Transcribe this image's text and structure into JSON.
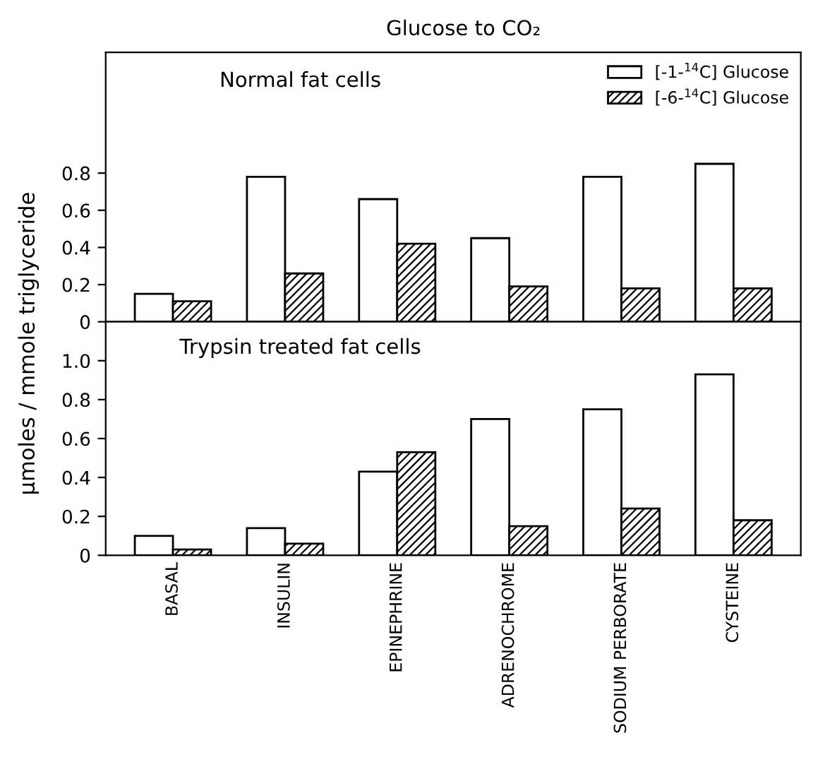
{
  "chart_data": [
    {
      "type": "bar",
      "title": "Glucose to CO₂",
      "subtitle": "Normal fat cells",
      "ylabel": "μmoles / mmole triglyceride",
      "categories": [
        null,
        null,
        null,
        null,
        null,
        null
      ],
      "series": [
        {
          "name": "[-1-$^{14}$C] Glucose",
          "color": "#ffffff",
          "values": [
            0.15,
            0.78,
            0.66,
            0.45,
            0.78,
            0.85
          ]
        },
        {
          "name": "[-6-$^{14}$C] Glucose",
          "color": "#000000",
          "values": [
            0.11,
            0.26,
            0.42,
            0.19,
            0.18,
            0.18
          ]
        }
      ],
      "ylim": [
        0,
        1.45
      ],
      "yticks": [
        0,
        0.2,
        0.4,
        0.6,
        0.8
      ],
      "tick_labels": "y",
      "legend": "top right",
      "grid": false
    },
    {
      "type": "bar",
      "subtitle": "Trypsin treated fat cells",
      "categories": [
        "BASAL",
        "INSULIN",
        "EPINEPHRINE",
        "ADRENOCHROME",
        "SODIUM PERBORATE",
        "CYSTEINE"
      ],
      "series": [
        {
          "color": "#ffffff",
          "values": [
            0.1,
            0.14,
            0.43,
            0.7,
            0.75,
            0.93
          ]
        },
        {
          "color": "#000000",
          "values": [
            0.03,
            0.06,
            0.53,
            0.15,
            0.24,
            0.18
          ]
        }
      ],
      "ylim": [
        0,
        1.2
      ],
      "yticks": [
        0,
        0.2,
        0.4,
        0.6,
        0.8,
        {
          "value": 1.0,
          "label": "1.0"
        }
      ],
      "legend": false,
      "grid": false
    }
  ]
}
